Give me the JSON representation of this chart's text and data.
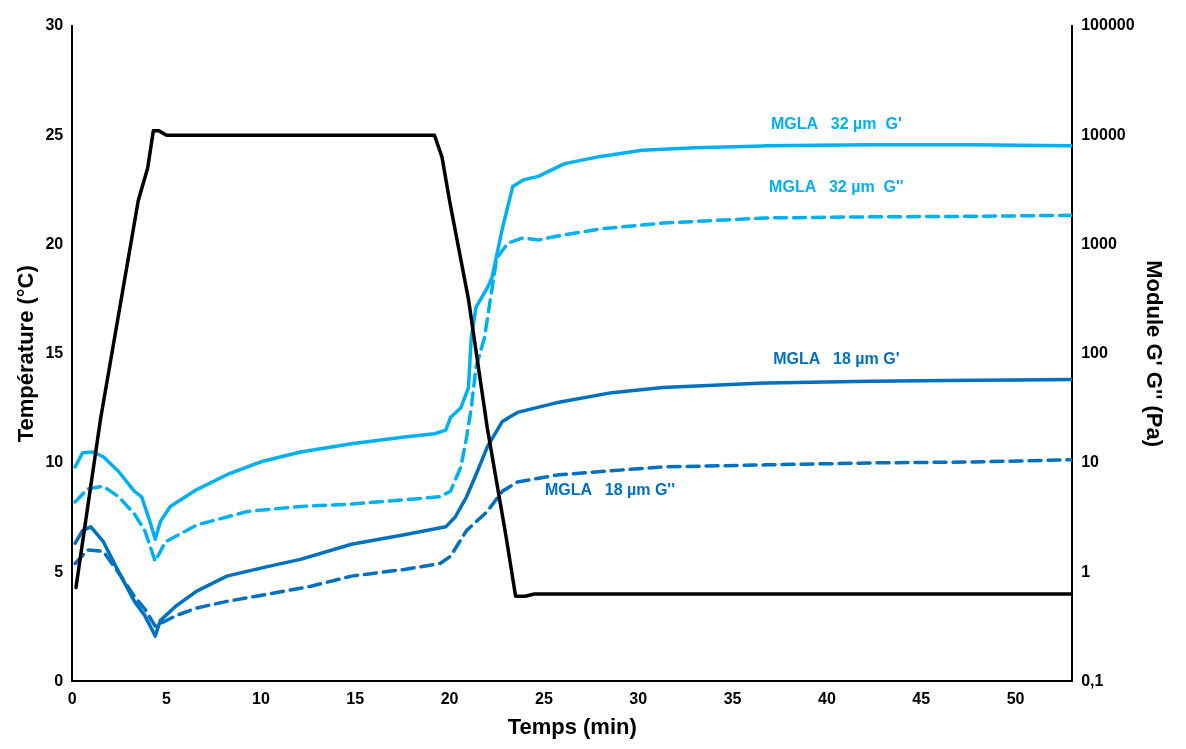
{
  "chart_data": {
    "type": "line",
    "xlabel": "Temps (min)",
    "ylabel": "Température (°C)",
    "y2label": "Module G' G'' (Pa)",
    "xlim": [
      0,
      53
    ],
    "xticks": [
      0,
      5,
      10,
      15,
      20,
      25,
      30,
      35,
      40,
      45,
      50
    ],
    "ylim": [
      0,
      30
    ],
    "yticks": [
      0,
      5,
      10,
      15,
      20,
      25,
      30
    ],
    "log": "y2",
    "y2lim": [
      0.1,
      100000
    ],
    "y2ticks": [
      {
        "value": 0.1,
        "label": "0,1"
      },
      1,
      10,
      100,
      1000,
      10000,
      100000
    ],
    "grid": false,
    "legend": false,
    "marker": "none",
    "series": [
      {
        "color": "#000000",
        "axis": "y",
        "line_style": "solid",
        "x": [
          0.2,
          1.5,
          2.5,
          3.5,
          4.0,
          4.3,
          4.6,
          5,
          19.2,
          19.6,
          20,
          21,
          22,
          23,
          23.5,
          24,
          24.5,
          53
        ],
        "values": [
          4.3,
          12,
          17,
          22,
          23.5,
          25.2,
          25.2,
          25,
          25,
          24,
          22,
          17.5,
          11.6,
          6.6,
          3.9,
          3.9,
          4,
          4
        ]
      },
      {
        "name": "MGLA   32 µm  G'",
        "color": "#00b0f0",
        "axis": "y2",
        "line_style": "solid",
        "x": [
          0.16,
          0.55,
          1.1,
          1.65,
          2.47,
          3.3,
          3.68,
          4.12,
          4.4,
          4.67,
          5.2,
          6.6,
          8.2,
          10.05,
          12.1,
          14.8,
          17.6,
          19.2,
          19.8,
          20.05,
          20.6,
          21.0,
          21.15,
          21.4,
          22.0,
          22.25,
          22.8,
          23.35,
          23.9,
          24.7,
          26.1,
          28.0,
          30.2,
          33.0,
          36.8,
          42.3,
          47.8,
          53
        ],
        "values": [
          9.2,
          12.4,
          12.6,
          11.4,
          8.3,
          5.5,
          4.9,
          2.9,
          2.0,
          2.9,
          4.0,
          5.7,
          7.8,
          10.3,
          12.6,
          15,
          17.3,
          18.5,
          20,
          26,
          32,
          49,
          140,
          265,
          400,
          500,
          1400,
          3400,
          3900,
          4200,
          5500,
          6400,
          7300,
          7700,
          8000,
          8200,
          8200,
          8000
        ]
      },
      {
        "name": "MGLA   32 µm  G''",
        "color": "#00b0f0",
        "axis": "y2",
        "line_style": "dashed",
        "x": [
          0.16,
          0.82,
          1.65,
          2.47,
          3.3,
          3.85,
          4.4,
          4.95,
          6.6,
          9.3,
          12.1,
          14.8,
          17.6,
          19.5,
          20.05,
          20.6,
          20.9,
          21.15,
          21.4,
          21.85,
          22.5,
          23.1,
          23.9,
          24.7,
          25.8,
          28.0,
          31.3,
          36.8,
          42.3,
          47.8,
          53
        ],
        "values": [
          4.4,
          5.8,
          6.1,
          4.9,
          3.4,
          2.4,
          1.26,
          1.9,
          2.7,
          3.6,
          4.0,
          4.2,
          4.6,
          4.9,
          5.5,
          9.2,
          17,
          32,
          75,
          140,
          750,
          1030,
          1150,
          1100,
          1200,
          1390,
          1570,
          1750,
          1790,
          1810,
          1850
        ]
      },
      {
        "name": "MGLA   18 µm G'",
        "color": "#0070c0",
        "axis": "y2",
        "line_style": "solid",
        "x": [
          0.16,
          0.55,
          0.99,
          1.65,
          2.47,
          3.3,
          3.85,
          4.4,
          4.67,
          5.5,
          6.6,
          8.2,
          10.4,
          12.1,
          14.8,
          17.6,
          19.8,
          20.3,
          20.9,
          21.4,
          22.0,
          22.8,
          23.6,
          25.8,
          28.6,
          31.3,
          36.8,
          42.3,
          47.8,
          53
        ],
        "values": [
          1.84,
          2.4,
          2.6,
          1.9,
          1.0,
          0.54,
          0.4,
          0.26,
          0.36,
          0.49,
          0.67,
          0.92,
          1.13,
          1.31,
          1.8,
          2.2,
          2.6,
          3.2,
          4.9,
          7.8,
          14,
          24,
          29,
          36,
          44,
          49,
          54,
          56,
          57,
          58
        ]
      },
      {
        "name": "MGLA   18 µm G''",
        "color": "#0070c0",
        "axis": "y2",
        "line_style": "dashed",
        "x": [
          0.16,
          0.82,
          1.65,
          2.47,
          3.3,
          3.85,
          4.4,
          5.5,
          6.6,
          8.2,
          10.4,
          12.6,
          14.8,
          17.6,
          19.5,
          20.05,
          20.9,
          22.0,
          22.8,
          23.6,
          25.8,
          31.3,
          36.8,
          42.3,
          47.8,
          53
        ],
        "values": [
          1.2,
          1.6,
          1.55,
          0.98,
          0.6,
          0.46,
          0.32,
          0.4,
          0.47,
          0.54,
          0.63,
          0.74,
          0.92,
          1.06,
          1.2,
          1.4,
          2.4,
          3.6,
          5.5,
          6.7,
          7.8,
          9.2,
          9.6,
          10,
          10.2,
          10.7
        ]
      }
    ]
  }
}
